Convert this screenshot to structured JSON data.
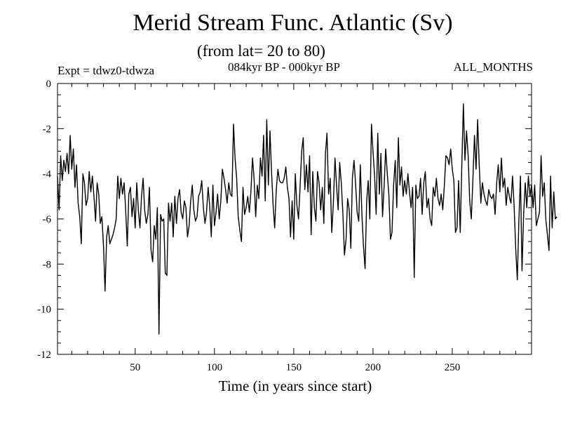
{
  "chart_data": {
    "type": "line",
    "title": "Merid Stream Func. Atlantic (Sv)",
    "subtitle": "(from lat= 20 to 80)",
    "annotations": {
      "expt": "Expt = tdwz0-tdwza",
      "period": "084kyr BP - 000kyr BP",
      "months": "ALL_MONTHS"
    },
    "xlabel": "Time (in years since start)",
    "ylabel": "",
    "xlim": [
      1,
      300
    ],
    "ylim": [
      -12,
      0
    ],
    "x_ticks": [
      50,
      100,
      150,
      200,
      250
    ],
    "y_ticks": [
      0,
      -2,
      -4,
      -6,
      -8,
      -10,
      -12
    ],
    "grid": false,
    "series": [
      {
        "values": [
          -4.1,
          -5.6,
          -3.2,
          -4.3,
          -3.4,
          -3.9,
          -3.1,
          -4.0,
          -2.3,
          -3.8,
          -2.9,
          -4.6,
          -3.6,
          -5.3,
          -5.9,
          -7.1,
          -4.0,
          -4.4,
          -5.4,
          -5.1,
          -3.9,
          -4.8,
          -4.1,
          -5.0,
          -6.1,
          -4.4,
          -4.9,
          -6.2,
          -5.9,
          -7.2,
          -9.2,
          -6.8,
          -6.3,
          -7.1,
          -6.9,
          -6.7,
          -6.4,
          -6.0,
          -4.1,
          -5.1,
          -4.2,
          -4.9,
          -4.4,
          -5.6,
          -7.2,
          -4.9,
          -4.6,
          -5.9,
          -5.1,
          -6.4,
          -4.4,
          -5.6,
          -6.4,
          -5.0,
          -4.2,
          -5.6,
          -6.2,
          -5.8,
          -4.6,
          -7.4,
          -7.9,
          -6.3,
          -6.9,
          -5.5,
          -11.1,
          -5.8,
          -6.1,
          -6.0,
          -8.4,
          -8.5,
          -5.3,
          -6.1,
          -5.3,
          -6.8,
          -5.0,
          -6.2,
          -5.1,
          -4.7,
          -5.7,
          -6.0,
          -5.2,
          -5.5,
          -6.8,
          -6.3,
          -5.2,
          -4.5,
          -5.6,
          -6.1,
          -5.9,
          -5.0,
          -4.8,
          -4.3,
          -5.5,
          -6.2,
          -5.7,
          -4.6,
          -5.4,
          -6.8,
          -4.5,
          -6.3,
          -5.7,
          -4.9,
          -6.0,
          -5.2,
          -3.8,
          -4.2,
          -4.7,
          -5.3,
          -4.4,
          -4.9,
          -5.0,
          -1.8,
          -3.3,
          -4.2,
          -5.9,
          -6.5,
          -7.0,
          -4.6,
          -5.8,
          -5.5,
          -5.0,
          -5.7,
          -4.8,
          -3.3,
          -4.2,
          -5.9,
          -4.5,
          -5.1,
          -3.3,
          -4.1,
          -2.3,
          -5.2,
          -1.6,
          -4.5,
          -2.1,
          -3.9,
          -5.4,
          -6.4,
          -4.7,
          -3.8,
          -4.3,
          -4.4,
          -4.4,
          -4.2,
          -3.7,
          -4.6,
          -5.1,
          -6.8,
          -5.2,
          -6.9,
          -4.0,
          -5.4,
          -6.0,
          -4.6,
          -3.0,
          -2.4,
          -4.7,
          -3.6,
          -4.8,
          -3.2,
          -6.7,
          -3.9,
          -5.5,
          -6.1,
          -3.9,
          -4.4,
          -5.6,
          -4.6,
          -6.2,
          -3.1,
          -2.2,
          -4.9,
          -4.2,
          -6.6,
          -5.3,
          -3.3,
          -4.5,
          -5.6,
          -3.5,
          -4.4,
          -5.8,
          -7.6,
          -6.9,
          -5.1,
          -5.6,
          -7.3,
          -4.2,
          -3.4,
          -4.4,
          -5.7,
          -6.1,
          -3.6,
          -5.8,
          -7.2,
          -8.2,
          -5.2,
          -4.3,
          -6.0,
          -1.8,
          -3.0,
          -4.1,
          -5.8,
          -2.2,
          -4.9,
          -3.1,
          -5.9,
          -4.6,
          -2.9,
          -4.0,
          -4.9,
          -6.9,
          -6.6,
          -4.5,
          -3.4,
          -5.5,
          -2.4,
          -4.5,
          -3.7,
          -5.0,
          -4.3,
          -4.9,
          -4.0,
          -4.8,
          -5.5,
          -4.6,
          -8.6,
          -4.5,
          -5.1,
          -5.0,
          -4.2,
          -5.8,
          -4.4,
          -3.9,
          -5.5,
          -5.1,
          -6.0,
          -6.3,
          -4.6,
          -5.0,
          -4.2,
          -5.1,
          -5.4,
          -4.9,
          -5.6,
          -4.5,
          -3.2,
          -3.3,
          -3.6,
          -2.9,
          -3.8,
          -4.3,
          -6.6,
          -6.4,
          -4.3,
          -6.6,
          -3.7,
          -0.9,
          -3.4,
          -2.1,
          -3.2,
          -5.2,
          -6.0,
          -4.3,
          -2.3,
          -3.8,
          -1.6,
          -3.6,
          -5.3,
          -4.4,
          -4.9,
          -5.2,
          -5.4,
          -4.7,
          -5.0,
          -5.1,
          -4.9,
          -5.8,
          -4.4,
          -3.6,
          -4.8,
          -3.3,
          -4.6,
          -4.2,
          -5.4,
          -4.6,
          -5.0,
          -5.3,
          -4.1,
          -5.4,
          -7.3,
          -8.7,
          -6.1,
          -4.1,
          -8.3,
          -5.8,
          -4.4,
          -5.5,
          -4.1,
          -5.0,
          -4.5,
          -5.5,
          -4.5,
          -6.3,
          -6.0,
          -5.7,
          -3.2,
          -5.0,
          -4.4,
          -6.0,
          -6.7,
          -7.4,
          -4.1,
          -6.4,
          -4.8,
          -6.0,
          -5.9
        ]
      }
    ]
  }
}
